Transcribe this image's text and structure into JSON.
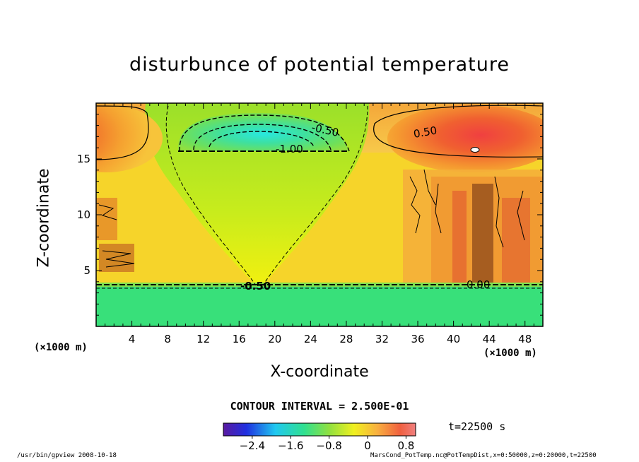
{
  "chart_data": {
    "type": "heatmap",
    "title": "disturbunce of potential temperature",
    "xlabel": "X-coordinate",
    "ylabel": "Z-coordinate",
    "x_unit": "(×1000 m)",
    "z_unit": "(×1000 m)",
    "xlim": [
      0,
      50
    ],
    "ylim": [
      0,
      20
    ],
    "x_ticks": [
      "4",
      "8",
      "12",
      "16",
      "20",
      "24",
      "28",
      "32",
      "36",
      "40",
      "44",
      "48"
    ],
    "y_ticks": [
      "5",
      "10",
      "15"
    ],
    "contour_interval": "CONTOUR INTERVAL = 2.500E-01",
    "contour_labels": [
      "-0.50",
      "-1.00",
      "0.50",
      "-0.50",
      "0.00"
    ],
    "colorbar": {
      "range": [
        -3.0,
        1.0
      ],
      "tick_labels": [
        "-2.4",
        "-1.6",
        "-0.8",
        "0",
        "0.8"
      ]
    },
    "time_label": "t=22500 s",
    "approx_field": [
      {
        "region": "lower layer z<3.6",
        "value": -0.7
      },
      {
        "region": "mid layer",
        "value": 0.1
      },
      {
        "region": "central cold core z≈16",
        "value": -1.8
      },
      {
        "region": "side warm cores z≈16",
        "value": 0.8
      }
    ]
  },
  "footer": {
    "left": "/usr/bin/gpview   2008-10-18",
    "right": "MarsCond_PotTemp.nc@PotTempDist,x=0:50000,z=0:20000,t=22500"
  }
}
